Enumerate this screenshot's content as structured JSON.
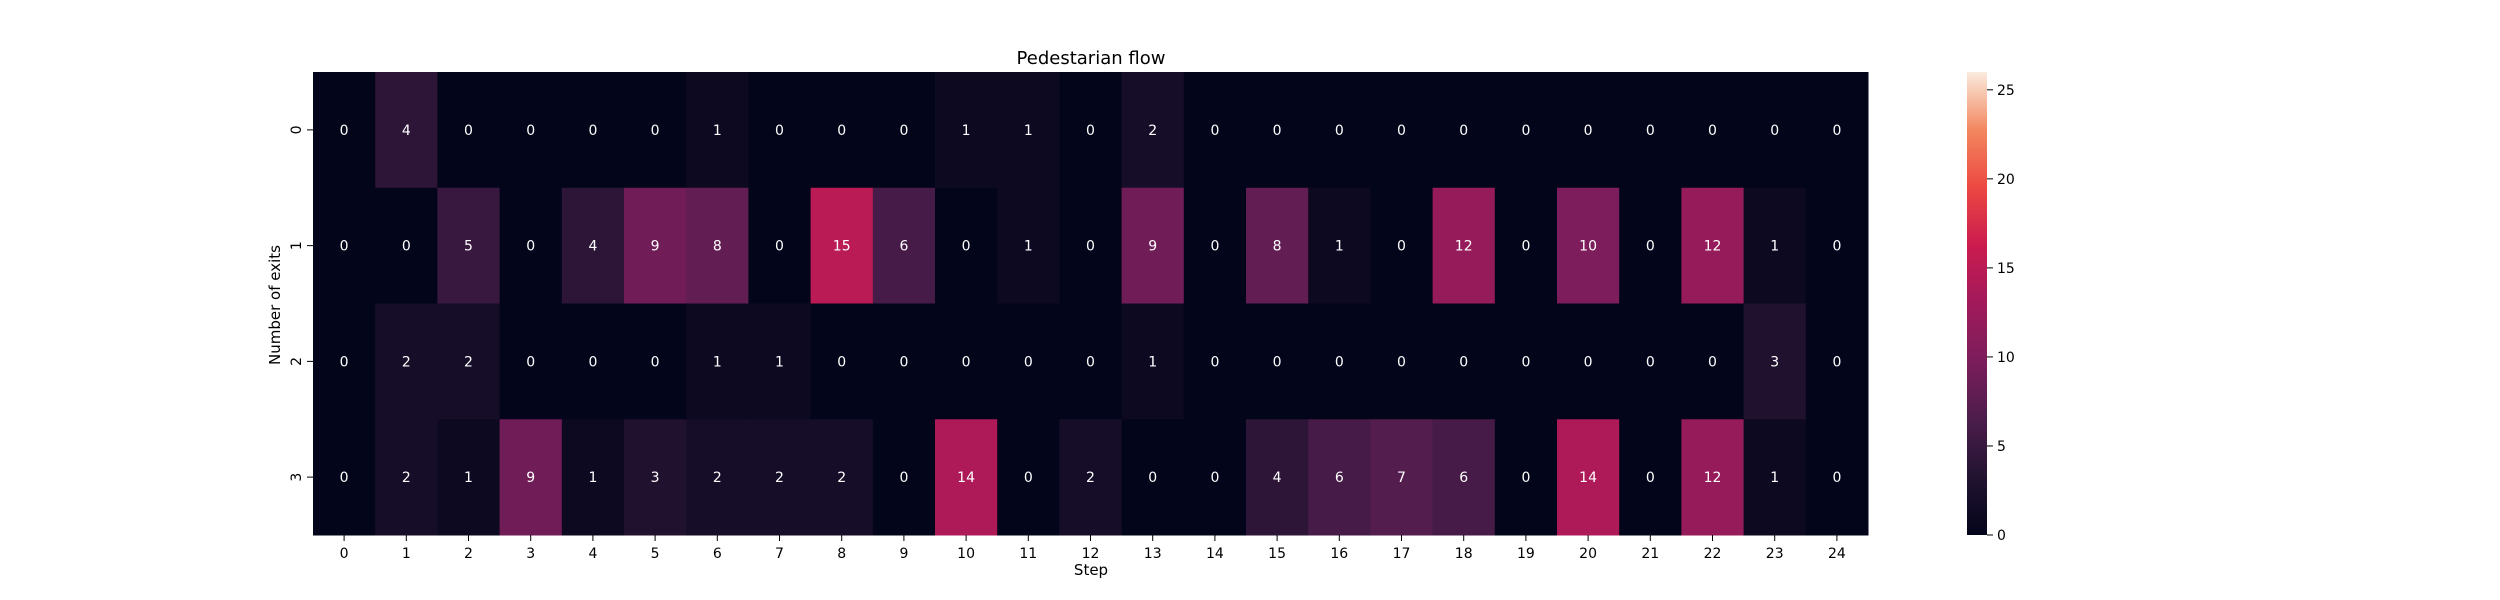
{
  "chart_data": {
    "type": "heatmap",
    "title": "Pedestarian flow",
    "xlabel": "Step",
    "ylabel": "Number of exits",
    "x_categories": [
      "0",
      "1",
      "2",
      "3",
      "4",
      "5",
      "6",
      "7",
      "8",
      "9",
      "10",
      "11",
      "12",
      "13",
      "14",
      "15",
      "16",
      "17",
      "18",
      "19",
      "20",
      "21",
      "22",
      "23",
      "24"
    ],
    "y_categories": [
      "0",
      "1",
      "2",
      "3"
    ],
    "values": [
      [
        0,
        4,
        0,
        0,
        0,
        0,
        1,
        0,
        0,
        0,
        1,
        1,
        0,
        2,
        0,
        0,
        0,
        0,
        0,
        0,
        0,
        0,
        0,
        0,
        0
      ],
      [
        0,
        0,
        5,
        0,
        4,
        9,
        8,
        0,
        15,
        6,
        0,
        1,
        0,
        9,
        0,
        8,
        1,
        0,
        12,
        0,
        10,
        0,
        12,
        1,
        0
      ],
      [
        0,
        2,
        2,
        0,
        0,
        0,
        1,
        1,
        0,
        0,
        0,
        0,
        0,
        1,
        0,
        0,
        0,
        0,
        0,
        0,
        0,
        0,
        0,
        3,
        0
      ],
      [
        0,
        2,
        1,
        9,
        1,
        3,
        2,
        2,
        2,
        0,
        14,
        0,
        2,
        0,
        0,
        4,
        6,
        7,
        6,
        0,
        14,
        0,
        12,
        1,
        0
      ]
    ],
    "colorbar": {
      "min": 0,
      "max": 26,
      "ticks": [
        "0",
        "5",
        "10",
        "15",
        "20",
        "25"
      ],
      "colormap": "rocket"
    }
  }
}
